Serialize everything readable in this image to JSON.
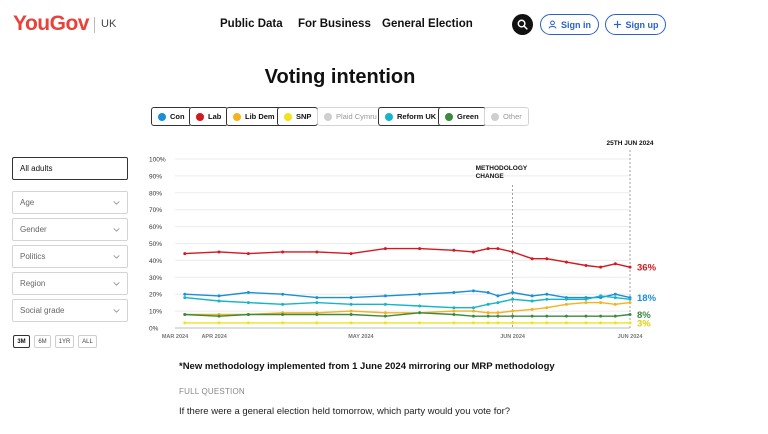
{
  "header": {
    "logo": "YouGov",
    "region": "UK",
    "nav": [
      "Public Data",
      "For Business",
      "General Election"
    ],
    "sign_in": "Sign in",
    "sign_up": "Sign up"
  },
  "title": "Voting intention",
  "legend": [
    {
      "label": "Con",
      "color": "#1a8fd8",
      "active": true
    },
    {
      "label": "Lab",
      "color": "#d4181f",
      "active": true
    },
    {
      "label": "Lib Dem",
      "color": "#f4b21f",
      "active": true
    },
    {
      "label": "SNP",
      "color": "#f1e21c",
      "active": true
    },
    {
      "label": "Plaid Cymru",
      "color": "#cfcfcf",
      "active": false
    },
    {
      "label": "Reform UK",
      "color": "#16b4c9",
      "active": true
    },
    {
      "label": "Green",
      "color": "#3a8a3f",
      "active": true
    },
    {
      "label": "Other",
      "color": "#cfcfcf",
      "active": false
    }
  ],
  "sidebar": {
    "filters": [
      "All adults",
      "Age",
      "Gender",
      "Politics",
      "Region",
      "Social grade"
    ],
    "ranges": [
      "3M",
      "6M",
      "1YR",
      "ALL"
    ],
    "active_range": "3M"
  },
  "chart_data": {
    "type": "line",
    "ylim": [
      0,
      100
    ],
    "yticks": [
      "100%",
      "90%",
      "80%",
      "70%",
      "60%",
      "50%",
      "40%",
      "30%",
      "20%",
      "10%",
      "0%"
    ],
    "x_range": [
      "2024-03-24",
      "2024-06-25"
    ],
    "xtick_labels": [
      {
        "date": "2024-03-24",
        "label": "MAR 2024"
      },
      {
        "date": "2024-04-01",
        "label": "APR 2024"
      },
      {
        "date": "2024-05-01",
        "label": "MAY 2024"
      },
      {
        "date": "2024-06-01",
        "label": "JUN 2024"
      },
      {
        "date": "2024-06-25",
        "label": "JUN 2024"
      }
    ],
    "annotations": [
      {
        "date": "2024-06-01",
        "label_lines": [
          "METHODOLOGY",
          "CHANGE"
        ]
      },
      {
        "date": "2024-06-25",
        "label_lines": [
          "25TH JUN 2024"
        ]
      }
    ],
    "end_labels": [
      {
        "series": "Lab",
        "text": "36%"
      },
      {
        "series": "Con",
        "text": "18%"
      },
      {
        "series": "Green",
        "text": "8%"
      },
      {
        "series": "SNP",
        "text": "3%"
      }
    ],
    "series": [
      {
        "name": "Lab",
        "color": "#d4181f",
        "points": [
          [
            "2024-03-26",
            44
          ],
          [
            "2024-04-02",
            45
          ],
          [
            "2024-04-08",
            44
          ],
          [
            "2024-04-15",
            45
          ],
          [
            "2024-04-22",
            45
          ],
          [
            "2024-04-29",
            44
          ],
          [
            "2024-05-06",
            47
          ],
          [
            "2024-05-13",
            47
          ],
          [
            "2024-05-20",
            46
          ],
          [
            "2024-05-24",
            45
          ],
          [
            "2024-05-27",
            47
          ],
          [
            "2024-05-29",
            47
          ],
          [
            "2024-06-01",
            45
          ],
          [
            "2024-06-05",
            41
          ],
          [
            "2024-06-08",
            41
          ],
          [
            "2024-06-12",
            39
          ],
          [
            "2024-06-16",
            37
          ],
          [
            "2024-06-19",
            36
          ],
          [
            "2024-06-22",
            38
          ],
          [
            "2024-06-25",
            36
          ]
        ]
      },
      {
        "name": "Con",
        "color": "#1a8fd8",
        "points": [
          [
            "2024-03-26",
            20
          ],
          [
            "2024-04-02",
            19
          ],
          [
            "2024-04-08",
            21
          ],
          [
            "2024-04-15",
            20
          ],
          [
            "2024-04-22",
            18
          ],
          [
            "2024-04-29",
            18
          ],
          [
            "2024-05-06",
            19
          ],
          [
            "2024-05-13",
            20
          ],
          [
            "2024-05-20",
            21
          ],
          [
            "2024-05-24",
            22
          ],
          [
            "2024-05-27",
            21
          ],
          [
            "2024-05-29",
            19
          ],
          [
            "2024-06-01",
            21
          ],
          [
            "2024-06-05",
            19
          ],
          [
            "2024-06-08",
            20
          ],
          [
            "2024-06-12",
            18
          ],
          [
            "2024-06-16",
            18
          ],
          [
            "2024-06-19",
            18
          ],
          [
            "2024-06-22",
            20
          ],
          [
            "2024-06-25",
            18
          ]
        ]
      },
      {
        "name": "Reform UK",
        "color": "#16b4c9",
        "points": [
          [
            "2024-03-26",
            18
          ],
          [
            "2024-04-02",
            16
          ],
          [
            "2024-04-08",
            15
          ],
          [
            "2024-04-15",
            14
          ],
          [
            "2024-04-22",
            15
          ],
          [
            "2024-04-29",
            14
          ],
          [
            "2024-05-06",
            14
          ],
          [
            "2024-05-13",
            13
          ],
          [
            "2024-05-20",
            12
          ],
          [
            "2024-05-24",
            12
          ],
          [
            "2024-05-27",
            14
          ],
          [
            "2024-05-29",
            15
          ],
          [
            "2024-06-01",
            17
          ],
          [
            "2024-06-05",
            16
          ],
          [
            "2024-06-08",
            17
          ],
          [
            "2024-06-12",
            17
          ],
          [
            "2024-06-16",
            17
          ],
          [
            "2024-06-19",
            19
          ],
          [
            "2024-06-22",
            18
          ],
          [
            "2024-06-25",
            17
          ]
        ]
      },
      {
        "name": "Lib Dem",
        "color": "#f4b21f",
        "points": [
          [
            "2024-03-26",
            8
          ],
          [
            "2024-04-02",
            8
          ],
          [
            "2024-04-08",
            8
          ],
          [
            "2024-04-15",
            9
          ],
          [
            "2024-04-22",
            9
          ],
          [
            "2024-04-29",
            10
          ],
          [
            "2024-05-06",
            9
          ],
          [
            "2024-05-13",
            9
          ],
          [
            "2024-05-20",
            10
          ],
          [
            "2024-05-24",
            10
          ],
          [
            "2024-05-27",
            9
          ],
          [
            "2024-05-29",
            9
          ],
          [
            "2024-06-01",
            10
          ],
          [
            "2024-06-05",
            11
          ],
          [
            "2024-06-08",
            12
          ],
          [
            "2024-06-12",
            14
          ],
          [
            "2024-06-16",
            15
          ],
          [
            "2024-06-19",
            15
          ],
          [
            "2024-06-22",
            14
          ],
          [
            "2024-06-25",
            15
          ]
        ]
      },
      {
        "name": "Green",
        "color": "#3a8a3f",
        "points": [
          [
            "2024-03-26",
            8
          ],
          [
            "2024-04-02",
            7
          ],
          [
            "2024-04-08",
            8
          ],
          [
            "2024-04-15",
            8
          ],
          [
            "2024-04-22",
            8
          ],
          [
            "2024-04-29",
            8
          ],
          [
            "2024-05-06",
            7
          ],
          [
            "2024-05-13",
            9
          ],
          [
            "2024-05-20",
            8
          ],
          [
            "2024-05-24",
            7
          ],
          [
            "2024-05-27",
            7
          ],
          [
            "2024-05-29",
            7
          ],
          [
            "2024-06-01",
            7
          ],
          [
            "2024-06-05",
            7
          ],
          [
            "2024-06-08",
            7
          ],
          [
            "2024-06-12",
            7
          ],
          [
            "2024-06-16",
            7
          ],
          [
            "2024-06-19",
            7
          ],
          [
            "2024-06-22",
            7
          ],
          [
            "2024-06-25",
            8
          ]
        ]
      },
      {
        "name": "SNP",
        "color": "#f1e21c",
        "points": [
          [
            "2024-03-26",
            3
          ],
          [
            "2024-04-02",
            3
          ],
          [
            "2024-04-08",
            3
          ],
          [
            "2024-04-15",
            3
          ],
          [
            "2024-04-22",
            3
          ],
          [
            "2024-04-29",
            3
          ],
          [
            "2024-05-06",
            3
          ],
          [
            "2024-05-13",
            3
          ],
          [
            "2024-05-20",
            3
          ],
          [
            "2024-05-24",
            3
          ],
          [
            "2024-05-27",
            3
          ],
          [
            "2024-05-29",
            3
          ],
          [
            "2024-06-01",
            3
          ],
          [
            "2024-06-05",
            3
          ],
          [
            "2024-06-08",
            3
          ],
          [
            "2024-06-12",
            3
          ],
          [
            "2024-06-16",
            3
          ],
          [
            "2024-06-19",
            3
          ],
          [
            "2024-06-22",
            3
          ],
          [
            "2024-06-25",
            3
          ]
        ]
      }
    ]
  },
  "footnote": "*New methodology implemented from 1 June 2024 mirroring our MRP methodology",
  "full_question_label": "FULL QUESTION",
  "question": "If there were a general election held tomorrow, which party would you vote for?"
}
